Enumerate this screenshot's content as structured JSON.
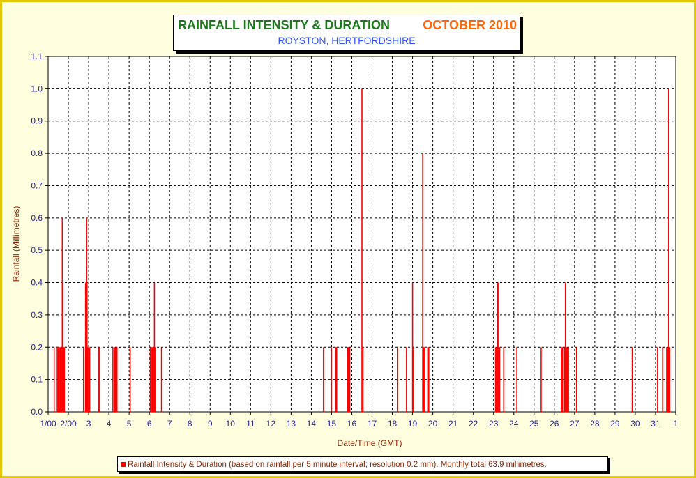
{
  "chart_data": {
    "type": "bar",
    "title": "RAINFALL INTENSITY & DURATION",
    "period": "OCTOBER 2010",
    "subtitle": "ROYSTON, HERTFORDSHIRE",
    "xlabel": "Date/Time (GMT)",
    "ylabel": "Rainfall (Millimetres)",
    "legend": "Rainfall Intensity & Duration (based on rainfall per 5 minute interval; resolution 0.2 mm). Monthly total 63.9 millimetres.",
    "ylim": [
      0,
      1.1
    ],
    "yticks": [
      "0.0",
      "0.1",
      "0.2",
      "0.3",
      "0.4",
      "0.5",
      "0.6",
      "0.7",
      "0.8",
      "0.9",
      "1.0",
      "1.1"
    ],
    "xlim": [
      1,
      32
    ],
    "xticks": [
      "1/00",
      "2/00",
      "3",
      "4",
      "5",
      "6",
      "7",
      "8",
      "9",
      "10",
      "11",
      "12",
      "13",
      "14",
      "15",
      "16",
      "17",
      "18",
      "19",
      "20",
      "21",
      "22",
      "23",
      "24",
      "25",
      "26",
      "27",
      "28",
      "29",
      "30",
      "31",
      "1"
    ],
    "grid": true,
    "color": "#ff0000",
    "series": [
      {
        "name": "Rainfall Intensity & Duration",
        "points": [
          [
            1.3,
            0.2
          ],
          [
            1.45,
            0.2
          ],
          [
            1.5,
            0.2
          ],
          [
            1.55,
            0.2
          ],
          [
            1.6,
            0.2
          ],
          [
            1.65,
            0.2
          ],
          [
            1.7,
            0.6
          ],
          [
            1.72,
            0.4
          ],
          [
            1.75,
            0.2
          ],
          [
            1.8,
            0.2
          ],
          [
            2.75,
            0.2
          ],
          [
            2.85,
            0.4
          ],
          [
            2.9,
            0.6
          ],
          [
            2.92,
            0.4
          ],
          [
            2.95,
            0.2
          ],
          [
            3.0,
            0.2
          ],
          [
            3.05,
            0.2
          ],
          [
            3.5,
            0.2
          ],
          [
            3.55,
            0.2
          ],
          [
            4.2,
            0.2
          ],
          [
            4.3,
            0.2
          ],
          [
            4.35,
            0.2
          ],
          [
            4.4,
            0.2
          ],
          [
            5.05,
            0.2
          ],
          [
            6.05,
            0.2
          ],
          [
            6.1,
            0.2
          ],
          [
            6.15,
            0.2
          ],
          [
            6.2,
            0.2
          ],
          [
            6.25,
            0.4
          ],
          [
            6.3,
            0.2
          ],
          [
            6.6,
            0.2
          ],
          [
            14.6,
            0.2
          ],
          [
            15.0,
            0.2
          ],
          [
            15.2,
            0.2
          ],
          [
            15.25,
            0.2
          ],
          [
            15.8,
            0.2
          ],
          [
            15.85,
            0.2
          ],
          [
            15.9,
            0.2
          ],
          [
            16.5,
            1.0
          ],
          [
            16.55,
            0.2
          ],
          [
            18.25,
            0.2
          ],
          [
            18.7,
            0.2
          ],
          [
            19.0,
            0.4
          ],
          [
            19.05,
            0.2
          ],
          [
            19.5,
            0.8
          ],
          [
            19.55,
            0.2
          ],
          [
            19.6,
            0.2
          ],
          [
            19.75,
            0.2
          ],
          [
            19.8,
            0.2
          ],
          [
            23.1,
            0.2
          ],
          [
            23.15,
            0.2
          ],
          [
            23.2,
            0.4
          ],
          [
            23.25,
            0.4
          ],
          [
            23.3,
            0.2
          ],
          [
            23.5,
            0.2
          ],
          [
            24.15,
            0.2
          ],
          [
            25.35,
            0.2
          ],
          [
            26.35,
            0.2
          ],
          [
            26.4,
            0.2
          ],
          [
            26.5,
            0.2
          ],
          [
            26.55,
            0.4
          ],
          [
            26.6,
            0.2
          ],
          [
            26.65,
            0.2
          ],
          [
            26.7,
            0.2
          ],
          [
            27.1,
            0.2
          ],
          [
            29.85,
            0.2
          ],
          [
            31.1,
            0.2
          ],
          [
            31.35,
            0.2
          ],
          [
            31.55,
            0.2
          ],
          [
            31.6,
            0.2
          ],
          [
            31.65,
            1.0
          ],
          [
            31.7,
            0.2
          ]
        ]
      }
    ]
  }
}
